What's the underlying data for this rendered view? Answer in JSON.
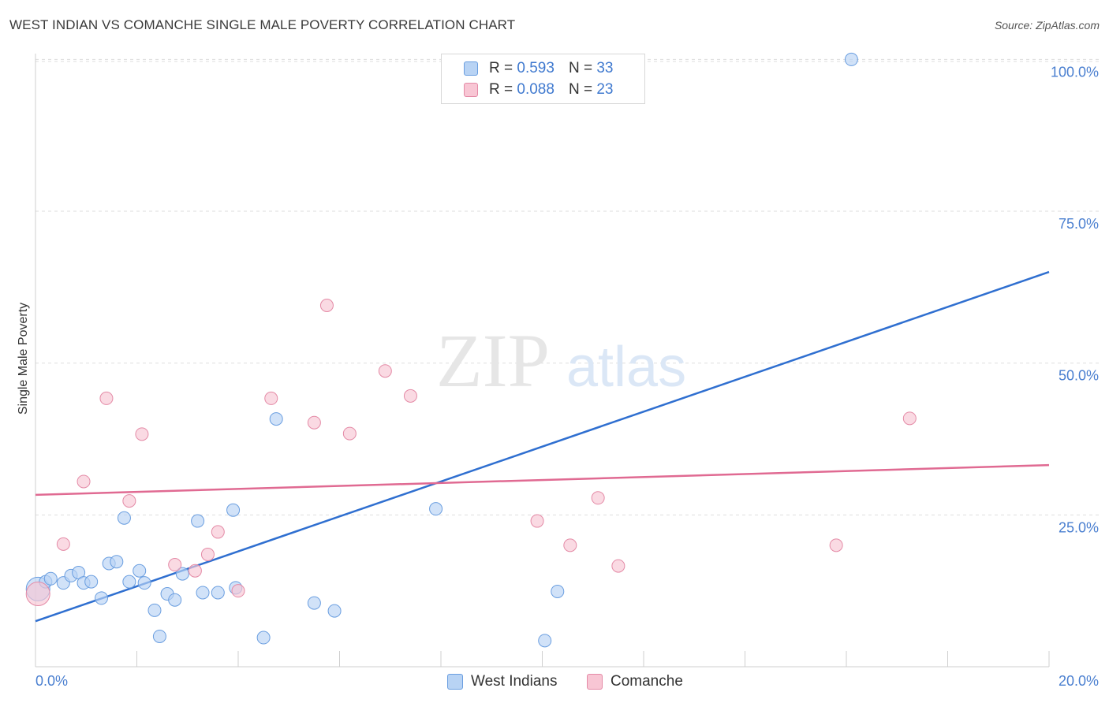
{
  "header": {
    "title": "WEST INDIAN VS COMANCHE SINGLE MALE POVERTY CORRELATION CHART",
    "source": "Source: ZipAtlas.com"
  },
  "legend": {
    "rows": [
      {
        "r_label": "R =",
        "r_value": "0.593",
        "n_label": "N =",
        "n_value": "33"
      },
      {
        "r_label": "R =",
        "r_value": "0.088",
        "n_label": "N =",
        "n_value": "23"
      }
    ],
    "bottom": [
      "West Indians",
      "Comanche"
    ]
  },
  "watermark": {
    "zip": "ZIP",
    "atlas": "atlas"
  },
  "colors": {
    "blue_fill": "#b8d3f4",
    "blue_stroke": "#6a9ee0",
    "blue_line": "#2f6fd0",
    "pink_fill": "#f8c6d4",
    "pink_stroke": "#e48aa6",
    "pink_line": "#e06a92",
    "tick_text": "#4a7fd0",
    "grid": "#dddddd"
  },
  "chart_data": {
    "type": "scatter",
    "title": "WEST INDIAN VS COMANCHE SINGLE MALE POVERTY CORRELATION CHART",
    "xlabel": "",
    "ylabel": "Single Male Poverty",
    "xlim": [
      0,
      20
    ],
    "ylim": [
      0,
      102
    ],
    "x_ticks": [
      "0.0%",
      "20.0%"
    ],
    "y_ticks": [
      {
        "value": 100,
        "label": "100.0%"
      },
      {
        "value": 75,
        "label": "75.0%"
      },
      {
        "value": 50,
        "label": "50.0%"
      },
      {
        "value": 25,
        "label": "25.0%"
      }
    ],
    "grid": true,
    "legend_position": "top-center",
    "series": [
      {
        "name": "West Indians",
        "color": "blue",
        "trend": {
          "x": [
            0,
            20
          ],
          "y": [
            7.5,
            65
          ]
        },
        "points": [
          {
            "x": 0.05,
            "y": 12.8,
            "big": true
          },
          {
            "x": 0.2,
            "y": 14.0
          },
          {
            "x": 0.3,
            "y": 14.5
          },
          {
            "x": 0.55,
            "y": 13.8
          },
          {
            "x": 0.7,
            "y": 15.0
          },
          {
            "x": 0.85,
            "y": 15.5
          },
          {
            "x": 0.95,
            "y": 13.8
          },
          {
            "x": 1.1,
            "y": 14.0
          },
          {
            "x": 1.3,
            "y": 11.3
          },
          {
            "x": 1.45,
            "y": 17.0
          },
          {
            "x": 1.6,
            "y": 17.3
          },
          {
            "x": 1.75,
            "y": 24.5
          },
          {
            "x": 1.85,
            "y": 14.0
          },
          {
            "x": 2.05,
            "y": 15.8
          },
          {
            "x": 2.15,
            "y": 13.8
          },
          {
            "x": 2.35,
            "y": 9.3
          },
          {
            "x": 2.45,
            "y": 5.0
          },
          {
            "x": 2.6,
            "y": 12.0
          },
          {
            "x": 2.75,
            "y": 11.0
          },
          {
            "x": 2.9,
            "y": 15.3
          },
          {
            "x": 3.2,
            "y": 24.0
          },
          {
            "x": 3.3,
            "y": 12.2
          },
          {
            "x": 3.6,
            "y": 12.2
          },
          {
            "x": 3.9,
            "y": 25.8
          },
          {
            "x": 3.95,
            "y": 13.0
          },
          {
            "x": 4.5,
            "y": 4.8
          },
          {
            "x": 4.75,
            "y": 40.8
          },
          {
            "x": 5.5,
            "y": 10.5
          },
          {
            "x": 5.9,
            "y": 9.2
          },
          {
            "x": 7.9,
            "y": 26.0
          },
          {
            "x": 10.05,
            "y": 4.3
          },
          {
            "x": 10.3,
            "y": 12.4
          },
          {
            "x": 16.1,
            "y": 100.0
          }
        ]
      },
      {
        "name": "Comanche",
        "color": "pink",
        "trend": {
          "x": [
            0,
            20
          ],
          "y": [
            28.3,
            33.2
          ]
        },
        "points": [
          {
            "x": 0.05,
            "y": 12.0,
            "big": true
          },
          {
            "x": 0.55,
            "y": 20.2
          },
          {
            "x": 0.95,
            "y": 30.5
          },
          {
            "x": 1.4,
            "y": 44.2
          },
          {
            "x": 1.85,
            "y": 27.3
          },
          {
            "x": 2.1,
            "y": 38.3
          },
          {
            "x": 2.75,
            "y": 16.8
          },
          {
            "x": 3.15,
            "y": 15.8
          },
          {
            "x": 3.4,
            "y": 18.5
          },
          {
            "x": 3.6,
            "y": 22.2
          },
          {
            "x": 4.0,
            "y": 12.5
          },
          {
            "x": 4.65,
            "y": 44.2
          },
          {
            "x": 5.5,
            "y": 40.2
          },
          {
            "x": 5.75,
            "y": 59.5
          },
          {
            "x": 6.2,
            "y": 38.4
          },
          {
            "x": 6.9,
            "y": 48.7
          },
          {
            "x": 7.4,
            "y": 44.6
          },
          {
            "x": 9.9,
            "y": 24.0
          },
          {
            "x": 10.55,
            "y": 20.0
          },
          {
            "x": 11.1,
            "y": 27.8
          },
          {
            "x": 11.5,
            "y": 16.6
          },
          {
            "x": 15.8,
            "y": 20.0
          },
          {
            "x": 17.25,
            "y": 40.9
          }
        ]
      }
    ]
  }
}
